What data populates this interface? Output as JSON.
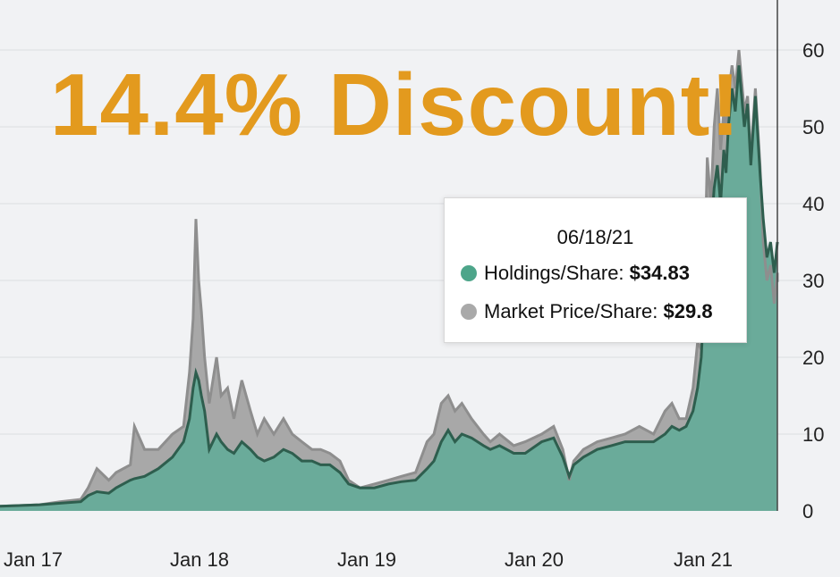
{
  "headline": "14.4% Discount!",
  "tooltip": {
    "date": "06/18/21",
    "holdings_label": "Holdings/Share: ",
    "holdings_value": "$34.83",
    "market_label": "Market Price/Share: ",
    "market_value": "$29.8"
  },
  "colors": {
    "holdings": "#6aab9a",
    "holdings_line": "#2e5e4e",
    "market": "#a8a8a8",
    "market_line": "#8e8e8e",
    "headline": "#e39a1e"
  },
  "chart_data": {
    "type": "area",
    "title": "",
    "xlabel": "",
    "ylabel": "",
    "ylim": [
      0,
      65
    ],
    "yticks": [
      0,
      10,
      20,
      30,
      40,
      50,
      60
    ],
    "x_tick_labels": [
      "Jan 17",
      "Jan 18",
      "Jan 19",
      "Jan 20",
      "Jan 21"
    ],
    "y_axis_position": "right",
    "grid": true,
    "x": [
      "2016-08-01",
      "2016-10-01",
      "2016-12-01",
      "2017-01-15",
      "2017-03-01",
      "2017-04-15",
      "2017-05-01",
      "2017-05-20",
      "2017-06-15",
      "2017-07-01",
      "2017-08-01",
      "2017-08-10",
      "2017-09-01",
      "2017-10-01",
      "2017-11-01",
      "2017-11-25",
      "2017-12-08",
      "2017-12-16",
      "2017-12-22",
      "2017-12-28",
      "2018-01-03",
      "2018-01-10",
      "2018-01-20",
      "2018-02-05",
      "2018-02-15",
      "2018-03-01",
      "2018-03-15",
      "2018-04-01",
      "2018-04-20",
      "2018-05-05",
      "2018-05-20",
      "2018-06-10",
      "2018-07-01",
      "2018-07-20",
      "2018-08-10",
      "2018-09-01",
      "2018-09-20",
      "2018-10-10",
      "2018-11-01",
      "2018-11-20",
      "2018-12-15",
      "2019-01-15",
      "2019-02-15",
      "2019-03-15",
      "2019-04-15",
      "2019-05-10",
      "2019-05-25",
      "2019-06-10",
      "2019-06-25",
      "2019-07-10",
      "2019-07-25",
      "2019-08-15",
      "2019-09-10",
      "2019-09-25",
      "2019-10-15",
      "2019-11-15",
      "2019-12-10",
      "2020-01-15",
      "2020-02-10",
      "2020-03-01",
      "2020-03-15",
      "2020-03-25",
      "2020-04-15",
      "2020-05-15",
      "2020-06-15",
      "2020-07-15",
      "2020-08-15",
      "2020-09-15",
      "2020-10-10",
      "2020-10-25",
      "2020-11-10",
      "2020-11-25",
      "2020-12-10",
      "2020-12-20",
      "2020-12-28",
      "2021-01-05",
      "2021-01-10",
      "2021-01-18",
      "2021-01-25",
      "2021-02-01",
      "2021-02-08",
      "2021-02-15",
      "2021-02-20",
      "2021-02-25",
      "2021-03-05",
      "2021-03-12",
      "2021-03-20",
      "2021-04-01",
      "2021-04-08",
      "2021-04-15",
      "2021-04-25",
      "2021-05-05",
      "2021-05-12",
      "2021-05-20",
      "2021-05-28",
      "2021-06-05",
      "2021-06-12",
      "2021-06-18"
    ],
    "series": [
      {
        "name": "Holdings/Share",
        "values": [
          0.5,
          0.6,
          0.7,
          0.8,
          1,
          1.2,
          2,
          2.5,
          2.3,
          3,
          4,
          4.2,
          4.5,
          5.5,
          7,
          9,
          12,
          16,
          18,
          17,
          15,
          13,
          8,
          10,
          9,
          8,
          7.5,
          9,
          8,
          7,
          6.5,
          7,
          8,
          7.5,
          6.5,
          6.5,
          6,
          6,
          5,
          3.5,
          3,
          3,
          3.5,
          3.8,
          4,
          5.5,
          6.5,
          9,
          10.5,
          9,
          10,
          9.5,
          8.5,
          8,
          8.5,
          7.5,
          7.5,
          9,
          9.5,
          7,
          4.5,
          6,
          7,
          8,
          8.5,
          9,
          9,
          9,
          10,
          11,
          10.5,
          11,
          13,
          16,
          20,
          30,
          37,
          36,
          42,
          45,
          40,
          47,
          44,
          50,
          55,
          52,
          58,
          50,
          53,
          45,
          54,
          44,
          38,
          33,
          35,
          31,
          35,
          34.83
        ]
      },
      {
        "name": "Market Price/Share",
        "values": [
          0.5,
          0.6,
          0.7,
          0.8,
          1.2,
          1.5,
          3,
          5.5,
          4,
          5,
          6,
          11,
          8,
          8,
          10,
          11,
          18,
          25,
          38,
          30,
          26,
          20,
          14,
          20,
          15,
          16,
          12,
          17,
          13,
          10,
          12,
          10,
          12,
          10,
          9,
          8,
          8,
          7.5,
          6.5,
          4,
          3,
          3.5,
          4,
          4.5,
          5,
          9,
          10,
          14,
          15,
          13,
          14,
          12,
          10,
          9,
          10,
          8.5,
          9,
          10,
          11,
          8,
          4,
          6.5,
          8,
          9,
          9.5,
          10,
          11,
          10,
          13,
          14,
          12,
          12,
          16,
          22,
          21,
          33,
          46,
          40,
          50,
          55,
          47,
          52,
          49,
          54,
          58,
          55,
          60,
          52,
          54,
          46,
          55,
          45,
          35,
          30,
          32,
          27,
          31,
          29.8
        ]
      }
    ]
  }
}
